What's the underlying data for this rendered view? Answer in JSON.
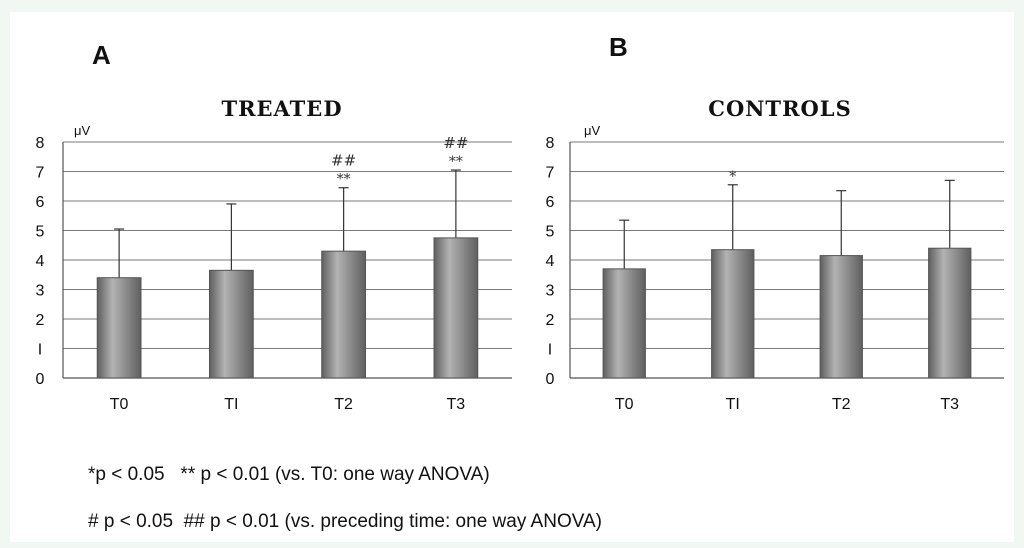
{
  "panel_letters": [
    "A",
    "B"
  ],
  "footnotes": [
    "*p < 0.05   ** p < 0.01 (vs. T0: one way ANOVA)",
    "# p < 0.05  ## p < 0.01 (vs. preceding time: one way ANOVA)"
  ],
  "colors": {
    "bar": "#8c8c8c",
    "bar_dark": "#5f5f5f",
    "bar_light": "#b3b3b3",
    "grid": "#7a7a7a",
    "text": "#111111"
  },
  "chart_data": [
    {
      "type": "bar",
      "title": "TREATED",
      "ylabel": "μV",
      "categories": [
        "T0",
        "TI",
        "T2",
        "T3"
      ],
      "values": [
        3.4,
        3.65,
        4.3,
        4.75
      ],
      "error_upper": [
        5.05,
        5.9,
        6.45,
        7.05
      ],
      "annotations": [
        {
          "category": "T2",
          "lines": [
            "##",
            "**"
          ]
        },
        {
          "category": "T3",
          "lines": [
            "##",
            "**"
          ]
        }
      ],
      "ylim": [
        0,
        8
      ],
      "yticks": [
        "0",
        "I",
        "2",
        "3",
        "4",
        "5",
        "6",
        "7",
        "8"
      ],
      "grid": true
    },
    {
      "type": "bar",
      "title": "CONTROLS",
      "ylabel": "μV",
      "categories": [
        "T0",
        "TI",
        "T2",
        "T3"
      ],
      "values": [
        3.7,
        4.35,
        4.15,
        4.4
      ],
      "error_upper": [
        5.35,
        6.55,
        6.35,
        6.7
      ],
      "annotations": [
        {
          "category": "TI",
          "lines": [
            "*"
          ]
        }
      ],
      "ylim": [
        0,
        8
      ],
      "yticks": [
        "0",
        "I",
        "2",
        "3",
        "4",
        "5",
        "6",
        "7",
        "8"
      ],
      "grid": true
    }
  ]
}
